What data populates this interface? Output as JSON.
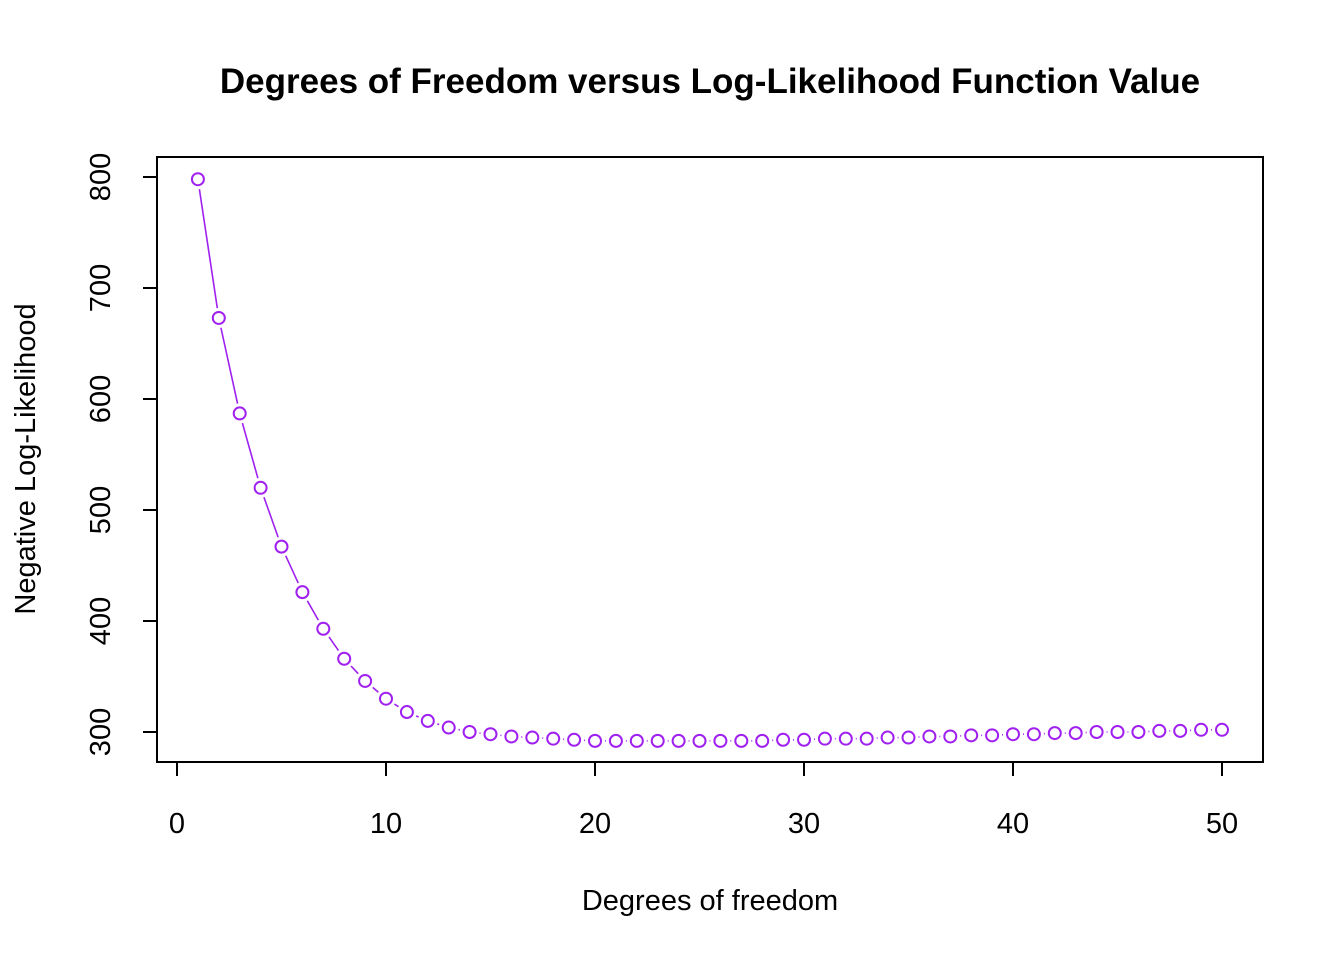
{
  "chart_data": {
    "type": "line",
    "title": "Degrees of Freedom versus Log-Likelihood Function Value",
    "xlabel": "Degrees of freedom",
    "ylabel": "Negative Log-Likelihood",
    "xlim": [
      0,
      50
    ],
    "ylim": [
      290,
      800
    ],
    "xticks": [
      0,
      10,
      20,
      30,
      40,
      50
    ],
    "yticks": [
      300,
      400,
      500,
      600,
      700,
      800
    ],
    "grid": false,
    "legend": "none",
    "marker": "open-circle",
    "line_style": "solid-with-gaps",
    "series": [
      {
        "color": "#A020F0",
        "x": [
          1,
          2,
          3,
          4,
          5,
          6,
          7,
          8,
          9,
          10,
          11,
          12,
          13,
          14,
          15,
          16,
          17,
          18,
          19,
          20,
          21,
          22,
          23,
          24,
          25,
          26,
          27,
          28,
          29,
          30,
          31,
          32,
          33,
          34,
          35,
          36,
          37,
          38,
          39,
          40,
          41,
          42,
          43,
          44,
          45,
          46,
          47,
          48,
          49,
          50
        ],
        "values": [
          798,
          673,
          587,
          520,
          467,
          426,
          393,
          366,
          346,
          330,
          318,
          310,
          304,
          300,
          298,
          296,
          295,
          294,
          293,
          292,
          292,
          292,
          292,
          292,
          292,
          292,
          292,
          292,
          293,
          293,
          294,
          294,
          294,
          295,
          295,
          296,
          296,
          297,
          297,
          298,
          298,
          299,
          299,
          300,
          300,
          300,
          301,
          301,
          302,
          302
        ]
      }
    ]
  }
}
